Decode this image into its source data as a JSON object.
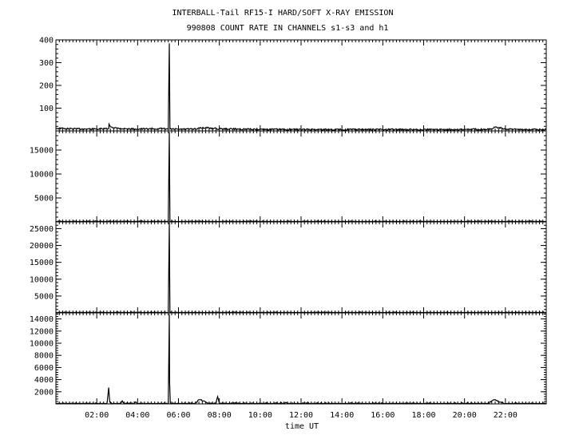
{
  "chart_data": {
    "type": "line",
    "title": "INTERBALL-Tail RF15-I HARD/SOFT X-RAY EMISSION",
    "subtitle": "990808  COUNT RATE IN CHANNELS s1-s3 and h1",
    "xlabel": "time UT",
    "x_ticks": [
      "02:00",
      "04:00",
      "06:00",
      "08:00",
      "10:00",
      "12:00",
      "14:00",
      "16:00",
      "18:00",
      "20:00",
      "22:00"
    ],
    "xlim": [
      "00:00",
      "24:00"
    ],
    "series_color": "#000000",
    "panels": [
      {
        "ylim": [
          0,
          400
        ],
        "y_ticks": [
          100,
          200,
          300,
          400
        ],
        "baseline": 8,
        "points": [
          [
            "00:00",
            12
          ],
          [
            "00:30",
            10
          ],
          [
            "01:00",
            9
          ],
          [
            "02:00",
            8
          ],
          [
            "02:35",
            10
          ],
          [
            "02:36",
            30
          ],
          [
            "02:40",
            18
          ],
          [
            "03:00",
            12
          ],
          [
            "03:30",
            9
          ],
          [
            "04:00",
            8
          ],
          [
            "05:00",
            10
          ],
          [
            "05:30",
            8
          ],
          [
            "05:33",
            385
          ],
          [
            "05:35",
            8
          ],
          [
            "06:00",
            7
          ],
          [
            "06:55",
            8
          ],
          [
            "07:00",
            14
          ],
          [
            "07:30",
            13
          ],
          [
            "08:00",
            9
          ],
          [
            "10:00",
            7
          ],
          [
            "12:00",
            6
          ],
          [
            "14:00",
            6
          ],
          [
            "16:00",
            6
          ],
          [
            "18:00",
            6
          ],
          [
            "20:00",
            6
          ],
          [
            "21:20",
            8
          ],
          [
            "21:30",
            16
          ],
          [
            "21:50",
            12
          ],
          [
            "22:00",
            7
          ],
          [
            "24:00",
            6
          ]
        ]
      },
      {
        "ylim": [
          0,
          19000
        ],
        "y_ticks": [
          5000,
          10000,
          15000
        ],
        "baseline": 30,
        "points": [
          [
            "00:00",
            40
          ],
          [
            "05:30",
            40
          ],
          [
            "05:33",
            18800
          ],
          [
            "05:35",
            40
          ],
          [
            "24:00",
            30
          ]
        ]
      },
      {
        "ylim": [
          0,
          27000
        ],
        "y_ticks": [
          5000,
          10000,
          15000,
          20000,
          25000
        ],
        "baseline": 30,
        "points": [
          [
            "00:00",
            40
          ],
          [
            "05:30",
            40
          ],
          [
            "05:33",
            26800
          ],
          [
            "05:35",
            40
          ],
          [
            "24:00",
            30
          ]
        ]
      },
      {
        "ylim": [
          0,
          15000
        ],
        "y_ticks": [
          2000,
          4000,
          6000,
          8000,
          10000,
          12000,
          14000
        ],
        "baseline": 20,
        "points": [
          [
            "00:00",
            20
          ],
          [
            "02:30",
            40
          ],
          [
            "02:35",
            2700
          ],
          [
            "02:38",
            300
          ],
          [
            "02:45",
            40
          ],
          [
            "03:10",
            60
          ],
          [
            "03:15",
            500
          ],
          [
            "03:20",
            60
          ],
          [
            "03:50",
            40
          ],
          [
            "03:55",
            300
          ],
          [
            "04:00",
            40
          ],
          [
            "05:30",
            40
          ],
          [
            "05:33",
            14800
          ],
          [
            "05:34",
            3500
          ],
          [
            "05:36",
            40
          ],
          [
            "06:50",
            60
          ],
          [
            "07:00",
            700
          ],
          [
            "07:15",
            500
          ],
          [
            "07:30",
            100
          ],
          [
            "07:50",
            40
          ],
          [
            "07:55",
            1200
          ],
          [
            "08:00",
            40
          ],
          [
            "10:30",
            60
          ],
          [
            "11:00",
            150
          ],
          [
            "11:30",
            80
          ],
          [
            "12:00",
            50
          ],
          [
            "21:10",
            40
          ],
          [
            "21:20",
            500
          ],
          [
            "21:30",
            700
          ],
          [
            "21:45",
            300
          ],
          [
            "22:00",
            40
          ],
          [
            "24:00",
            20
          ]
        ]
      }
    ]
  }
}
